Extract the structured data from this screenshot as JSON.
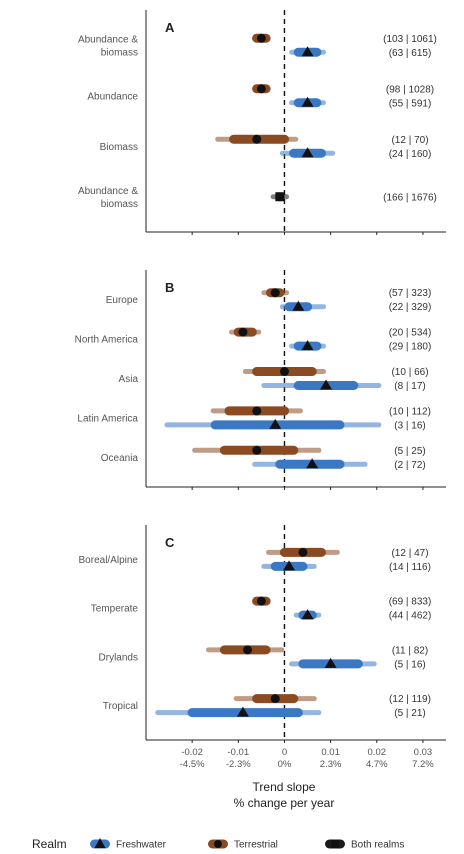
{
  "figure": {
    "x_axis_title_line1": "Trend slope",
    "x_axis_title_line2": "% change per year",
    "x_tick_labels_top": [
      "-0.02",
      "-0.01",
      "0",
      "0.01",
      "0.02",
      "0.03"
    ],
    "x_tick_labels_bottom": [
      "-4.5%",
      "-2.3%",
      "0%",
      "2.3%",
      "4.7%",
      "7.2%"
    ],
    "legend": {
      "title": "Realm",
      "items": [
        {
          "label": "Freshwater",
          "color": "#3b78c4",
          "marker": "triangle"
        },
        {
          "label": "Terrestrial",
          "color": "#8a4a22",
          "marker": "circle"
        },
        {
          "label": "Both realms",
          "color": "#1a1a1a",
          "marker": "square"
        }
      ]
    }
  },
  "chart_data": [
    {
      "type": "interval",
      "panel": "A",
      "xlim": [
        -0.03,
        0.035
      ],
      "zero_line": "dashed",
      "categories": [
        {
          "label": [
            "Abundance &",
            "biomass"
          ],
          "rows": [
            {
              "realm": "Terrestrial",
              "estimate": -0.005,
              "ci_inner": [
                -0.007,
                -0.003
              ],
              "ci_outer": [
                -0.007,
                -0.003
              ],
              "count": "(103 | 1061)"
            },
            {
              "realm": "Freshwater",
              "estimate": 0.005,
              "ci_inner": [
                0.002,
                0.008
              ],
              "ci_outer": [
                0.001,
                0.009
              ],
              "count": "(63 | 615)"
            }
          ]
        },
        {
          "label": [
            "Abundance"
          ],
          "rows": [
            {
              "realm": "Terrestrial",
              "estimate": -0.005,
              "ci_inner": [
                -0.007,
                -0.003
              ],
              "ci_outer": [
                -0.007,
                -0.003
              ],
              "count": "(98 | 1028)"
            },
            {
              "realm": "Freshwater",
              "estimate": 0.005,
              "ci_inner": [
                0.002,
                0.008
              ],
              "ci_outer": [
                0.001,
                0.009
              ],
              "count": "(55 | 591)"
            }
          ]
        },
        {
          "label": [
            "Biomass"
          ],
          "rows": [
            {
              "realm": "Terrestrial",
              "estimate": -0.006,
              "ci_inner": [
                -0.012,
                0.001
              ],
              "ci_outer": [
                -0.015,
                0.003
              ],
              "count": "(12 | 70)"
            },
            {
              "realm": "Freshwater",
              "estimate": 0.005,
              "ci_inner": [
                0.001,
                0.009
              ],
              "ci_outer": [
                -0.001,
                0.011
              ],
              "count": "(24 | 160)"
            }
          ]
        },
        {
          "label": [
            "Abundance &",
            "biomass"
          ],
          "rows": [
            {
              "realm": "Both realms",
              "estimate": -0.001,
              "ci_inner": [
                -0.002,
                0.0
              ],
              "ci_outer": [
                -0.003,
                0.001
              ],
              "count": "(166 | 1676)"
            }
          ]
        }
      ]
    },
    {
      "type": "interval",
      "panel": "B",
      "xlim": [
        -0.03,
        0.035
      ],
      "zero_line": "dashed",
      "categories": [
        {
          "label": [
            "Europe"
          ],
          "rows": [
            {
              "realm": "Terrestrial",
              "estimate": -0.002,
              "ci_inner": [
                -0.004,
                0.0
              ],
              "ci_outer": [
                -0.005,
                0.001
              ],
              "count": "(57 | 323)"
            },
            {
              "realm": "Freshwater",
              "estimate": 0.003,
              "ci_inner": [
                0.0,
                0.006
              ],
              "ci_outer": [
                -0.001,
                0.009
              ],
              "count": "(22 | 329)"
            }
          ]
        },
        {
          "label": [
            "North America"
          ],
          "rows": [
            {
              "realm": "Terrestrial",
              "estimate": -0.009,
              "ci_inner": [
                -0.011,
                -0.006
              ],
              "ci_outer": [
                -0.012,
                -0.005
              ],
              "count": "(20 | 534)"
            },
            {
              "realm": "Freshwater",
              "estimate": 0.005,
              "ci_inner": [
                0.002,
                0.008
              ],
              "ci_outer": [
                0.001,
                0.009
              ],
              "count": "(29 | 180)"
            }
          ]
        },
        {
          "label": [
            "Asia"
          ],
          "rows": [
            {
              "realm": "Terrestrial",
              "estimate": 0.0,
              "ci_inner": [
                -0.007,
                0.007
              ],
              "ci_outer": [
                -0.009,
                0.009
              ],
              "count": "(10 | 66)"
            },
            {
              "realm": "Freshwater",
              "estimate": 0.009,
              "ci_inner": [
                0.002,
                0.016
              ],
              "ci_outer": [
                -0.005,
                0.021
              ],
              "count": "(8 | 17)"
            }
          ]
        },
        {
          "label": [
            "Latin America"
          ],
          "rows": [
            {
              "realm": "Terrestrial",
              "estimate": -0.006,
              "ci_inner": [
                -0.013,
                0.001
              ],
              "ci_outer": [
                -0.016,
                0.004
              ],
              "count": "(10 | 112)"
            },
            {
              "realm": "Freshwater",
              "estimate": -0.002,
              "ci_inner": [
                -0.016,
                0.013
              ],
              "ci_outer": [
                -0.026,
                0.021
              ],
              "count": "(3 | 16)"
            }
          ]
        },
        {
          "label": [
            "Oceania"
          ],
          "rows": [
            {
              "realm": "Terrestrial",
              "estimate": -0.006,
              "ci_inner": [
                -0.014,
                0.003
              ],
              "ci_outer": [
                -0.02,
                0.008
              ],
              "count": "(5 | 25)"
            },
            {
              "realm": "Freshwater",
              "estimate": 0.006,
              "ci_inner": [
                -0.002,
                0.013
              ],
              "ci_outer": [
                -0.007,
                0.018
              ],
              "count": "(2 | 72)"
            }
          ]
        }
      ]
    },
    {
      "type": "interval",
      "panel": "C",
      "xlim": [
        -0.03,
        0.035
      ],
      "zero_line": "dashed",
      "categories": [
        {
          "label": [
            "Boreal/Alpine"
          ],
          "rows": [
            {
              "realm": "Terrestrial",
              "estimate": 0.004,
              "ci_inner": [
                -0.001,
                0.009
              ],
              "ci_outer": [
                -0.004,
                0.012
              ],
              "count": "(12 | 47)"
            },
            {
              "realm": "Freshwater",
              "estimate": 0.001,
              "ci_inner": [
                -0.003,
                0.005
              ],
              "ci_outer": [
                -0.005,
                0.007
              ],
              "count": "(14 | 116)"
            }
          ]
        },
        {
          "label": [
            "Temperate"
          ],
          "rows": [
            {
              "realm": "Terrestrial",
              "estimate": -0.005,
              "ci_inner": [
                -0.007,
                -0.003
              ],
              "ci_outer": [
                -0.007,
                -0.003
              ],
              "count": "(69 | 833)"
            },
            {
              "realm": "Freshwater",
              "estimate": 0.005,
              "ci_inner": [
                0.003,
                0.007
              ],
              "ci_outer": [
                0.002,
                0.008
              ],
              "count": "(44 | 462)"
            }
          ]
        },
        {
          "label": [
            "Drylands"
          ],
          "rows": [
            {
              "realm": "Terrestrial",
              "estimate": -0.008,
              "ci_inner": [
                -0.014,
                -0.003
              ],
              "ci_outer": [
                -0.017,
                0.0
              ],
              "count": "(11 | 82)"
            },
            {
              "realm": "Freshwater",
              "estimate": 0.01,
              "ci_inner": [
                0.003,
                0.017
              ],
              "ci_outer": [
                0.001,
                0.02
              ],
              "count": "(5 | 16)"
            }
          ]
        },
        {
          "label": [
            "Tropical"
          ],
          "rows": [
            {
              "realm": "Terrestrial",
              "estimate": -0.002,
              "ci_inner": [
                -0.007,
                0.003
              ],
              "ci_outer": [
                -0.011,
                0.007
              ],
              "count": "(12 | 119)"
            },
            {
              "realm": "Freshwater",
              "estimate": -0.009,
              "ci_inner": [
                -0.021,
                0.004
              ],
              "ci_outer": [
                -0.028,
                0.008
              ],
              "count": "(5 | 21)"
            }
          ]
        }
      ]
    }
  ]
}
